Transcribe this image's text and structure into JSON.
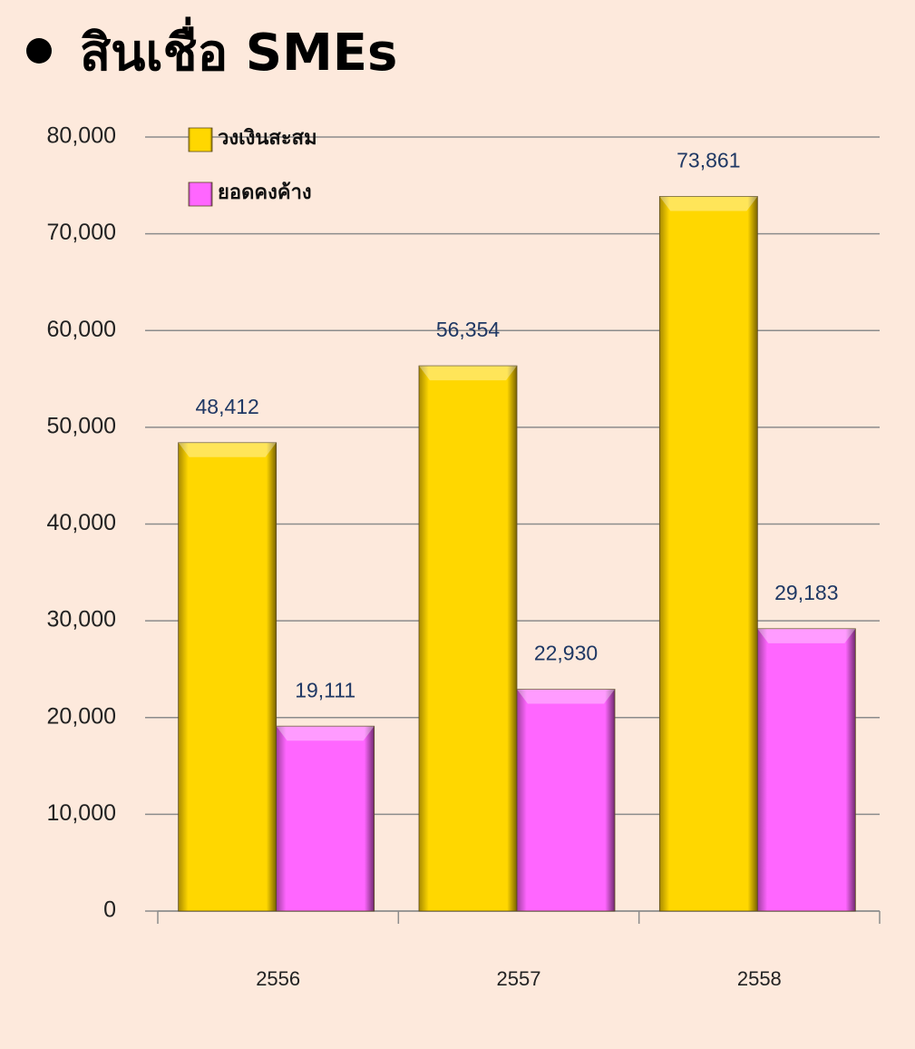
{
  "chart_data": {
    "type": "bar",
    "title": "สินเชื่อ SMEs",
    "categories": [
      "2556",
      "2557",
      "2558"
    ],
    "series": [
      {
        "name": "วงเงินสะสม",
        "color": "#ffd700",
        "values": [
          48412,
          56354,
          73861
        ],
        "value_labels": [
          "48,412",
          "56,354",
          "73,861"
        ]
      },
      {
        "name": "ยอดคงค้าง",
        "color": "#ff66ff",
        "values": [
          19111,
          22930,
          29183
        ],
        "value_labels": [
          "19,111",
          "22,930",
          "29,183"
        ]
      }
    ],
    "ylim": [
      0,
      80000
    ],
    "yticks": [
      0,
      {
        "value": 10000,
        "label": "10,000"
      },
      {
        "value": 20000,
        "label": "20,000"
      },
      {
        "value": 30000,
        "label": "30,000"
      },
      {
        "value": 40000,
        "label": "40,000"
      },
      {
        "value": 50000,
        "label": "50,000"
      },
      {
        "value": 60000,
        "label": "60,000"
      },
      {
        "value": 70000,
        "label": "70,000"
      },
      {
        "value": 80000,
        "label": "80,000"
      }
    ],
    "grid": true,
    "legend": "upper left"
  }
}
